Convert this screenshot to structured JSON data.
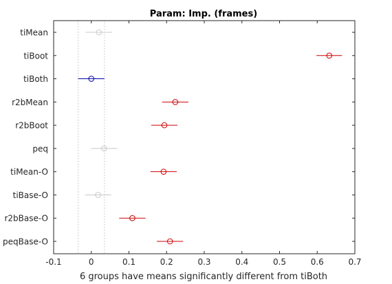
{
  "chart_data": {
    "type": "scatter",
    "title": "Param: Imp. (frames)",
    "xlabel": "6 groups have means significantly different from tiBoth",
    "ylabel": "",
    "xlim": [
      -0.1,
      0.7
    ],
    "xticks": [
      -0.1,
      0,
      0.1,
      0.2,
      0.3,
      0.4,
      0.5,
      0.6,
      0.7
    ],
    "xtick_labels": [
      "-0.1",
      "0",
      "0.1",
      "0.2",
      "0.3",
      "0.4",
      "0.5",
      "0.6",
      "0.7"
    ],
    "reference_group": "tiBoth",
    "reference_interval": [
      -0.035,
      0.035
    ],
    "groups": [
      {
        "label": "tiMean",
        "mean": 0.02,
        "lower": -0.015,
        "upper": 0.055,
        "status": "not-significant"
      },
      {
        "label": "tiBoot",
        "mean": 0.632,
        "lower": 0.598,
        "upper": 0.666,
        "status": "significant"
      },
      {
        "label": "tiBoth",
        "mean": 0.0,
        "lower": -0.035,
        "upper": 0.035,
        "status": "reference"
      },
      {
        "label": "r2bMean",
        "mean": 0.223,
        "lower": 0.188,
        "upper": 0.258,
        "status": "significant"
      },
      {
        "label": "r2bBoot",
        "mean": 0.194,
        "lower": 0.159,
        "upper": 0.229,
        "status": "significant"
      },
      {
        "label": "peq",
        "mean": 0.034,
        "lower": -0.001,
        "upper": 0.069,
        "status": "not-significant"
      },
      {
        "label": "tiMean-O",
        "mean": 0.192,
        "lower": 0.157,
        "upper": 0.227,
        "status": "significant"
      },
      {
        "label": "tiBase-O",
        "mean": 0.018,
        "lower": -0.017,
        "upper": 0.053,
        "status": "not-significant"
      },
      {
        "label": "r2bBase-O",
        "mean": 0.109,
        "lower": 0.074,
        "upper": 0.144,
        "status": "significant"
      },
      {
        "label": "peqBase-O",
        "mean": 0.209,
        "lower": 0.174,
        "upper": 0.244,
        "status": "significant"
      }
    ],
    "grid": false,
    "colors": {
      "significant": "#cc0000",
      "reference": "#0000aa",
      "not-significant": "#c8c8c8",
      "reference_lines": "#c0c0c0",
      "axes": "#262626"
    }
  }
}
